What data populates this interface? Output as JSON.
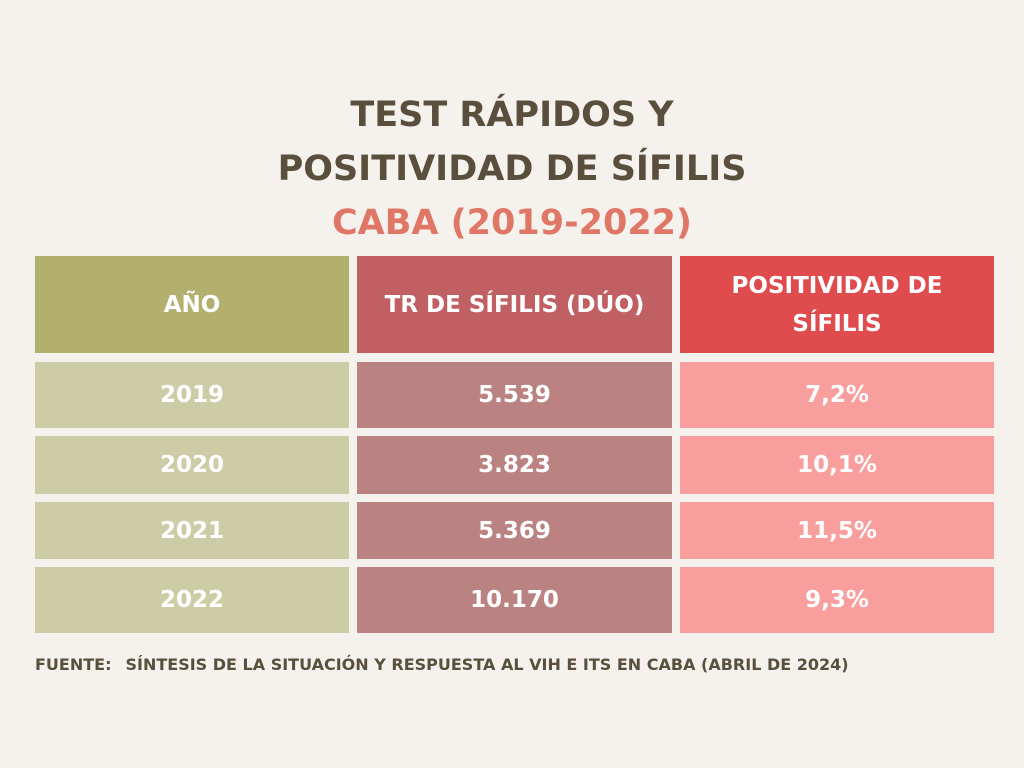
{
  "title": {
    "line1": "TEST RÁPIDOS Y",
    "line2": "POSITIVIDAD DE SÍFILIS",
    "line3": "CABA (2019-2022)"
  },
  "colors": {
    "background": "#f5f2ed",
    "title_text": "#5a4e3c",
    "title_accent": "#e07766",
    "header_year": "#b3b06f",
    "header_tests": "#c06063",
    "header_positivity": "#e04c4e",
    "cell_year": "#cccca6",
    "cell_tests": "#ba8280",
    "cell_positivity": "#f89f9e"
  },
  "chart_data": {
    "type": "table",
    "columns": [
      "AÑO",
      "TR DE SÍFILIS (DÚO)",
      "POSITIVIDAD DE SÍFILIS"
    ],
    "rows": [
      [
        "2019",
        "5.539",
        "7,2%"
      ],
      [
        "2020",
        "3.823",
        "10,1%"
      ],
      [
        "2021",
        "5.369",
        "11,5%"
      ],
      [
        "2022",
        "10.170",
        "9,3%"
      ]
    ]
  },
  "source": {
    "label": "FUENTE:",
    "text": "SÍNTESIS DE LA SITUACIÓN Y RESPUESTA AL VIH E ITS EN CABA (ABRIL DE 2024)"
  }
}
